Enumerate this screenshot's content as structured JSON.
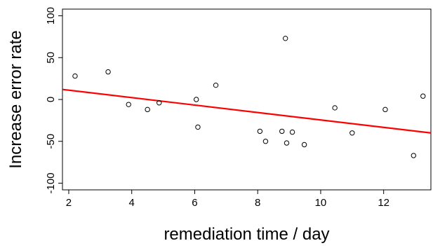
{
  "chart_data": {
    "type": "scatter",
    "title": "",
    "xlabel": "remediation time / day",
    "ylabel": "Increase error rate",
    "xlim": [
      1.8,
      13.5
    ],
    "ylim": [
      -108,
      108
    ],
    "x_ticks": [
      2,
      4,
      6,
      8,
      10,
      12
    ],
    "x_tick_labels": [
      "2",
      "4",
      "6",
      "8",
      "10",
      "12"
    ],
    "y_ticks": [
      -100,
      -50,
      0,
      50,
      100
    ],
    "y_tick_labels": [
      "-100",
      "-50",
      "0",
      "50",
      "100"
    ],
    "grid": false,
    "legend": "none",
    "points": [
      {
        "x": 2.2,
        "y": 28
      },
      {
        "x": 3.25,
        "y": 33
      },
      {
        "x": 3.9,
        "y": -6
      },
      {
        "x": 4.5,
        "y": -12
      },
      {
        "x": 4.87,
        "y": -4
      },
      {
        "x": 6.05,
        "y": 0
      },
      {
        "x": 6.1,
        "y": -33
      },
      {
        "x": 6.67,
        "y": 17
      },
      {
        "x": 8.07,
        "y": -38
      },
      {
        "x": 8.25,
        "y": -50
      },
      {
        "x": 8.77,
        "y": -38
      },
      {
        "x": 8.88,
        "y": 73
      },
      {
        "x": 8.92,
        "y": -52
      },
      {
        "x": 9.1,
        "y": -39
      },
      {
        "x": 9.48,
        "y": -54
      },
      {
        "x": 10.45,
        "y": -10
      },
      {
        "x": 11.0,
        "y": -40
      },
      {
        "x": 12.05,
        "y": -12
      },
      {
        "x": 12.95,
        "y": -67
      },
      {
        "x": 13.25,
        "y": 4
      }
    ],
    "regression_line": {
      "x": [
        1.8,
        13.5
      ],
      "y": [
        12,
        -40
      ],
      "color": "#ff0000"
    },
    "point_color": "#000000"
  }
}
